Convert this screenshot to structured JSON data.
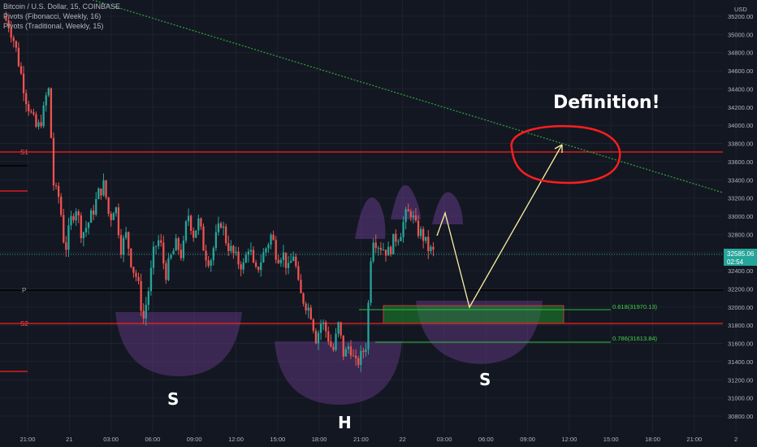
{
  "legend": {
    "title": "Bitcoin / U.S. Dollar, 15, COINBASE",
    "indicator1": "Pivots (Fibonacci, Weekly, 16)",
    "indicator2": "Pivots (Traditional, Weekly, 15)"
  },
  "price_axis": {
    "currency": "USD",
    "ticks": [
      "35200.00",
      "35000.00",
      "34800.00",
      "34600.00",
      "34400.00",
      "34200.00",
      "34000.00",
      "33800.00",
      "33600.00",
      "33400.00",
      "33200.00",
      "33000.00",
      "32800.00",
      "32600.00",
      "32400.00",
      "32200.00",
      "32000.00",
      "31800.00",
      "31600.00",
      "31400.00",
      "31200.00",
      "31000.00",
      "30800.00"
    ],
    "last_price": "32585.06",
    "countdown": "02:54"
  },
  "time_axis": {
    "ticks": [
      "21:00",
      "21",
      "03:00",
      "06:00",
      "09:00",
      "12:00",
      "15:00",
      "18:00",
      "21:00",
      "22",
      "03:00",
      "06:00",
      "09:00",
      "12:00",
      "15:00",
      "18:00",
      "21:00",
      "2"
    ]
  },
  "pivots": {
    "s1": "S1",
    "s2": "S2",
    "p": "P"
  },
  "fib": {
    "f618": "0.618(31970.13)",
    "f786": "0.786(31613.84)"
  },
  "annotations": {
    "definition": "Definition!",
    "left_shoulder": "S",
    "head": "H",
    "right_shoulder": "S"
  },
  "colors": {
    "up": "#26a69a",
    "down": "#ef5350",
    "pivot_red": "#ff1e1e",
    "trend": "#2e9e3a",
    "projection": "#f7f1a1",
    "shape": "#6a3e8f",
    "bg": "#131722"
  },
  "chart_data": {
    "type": "candlestick",
    "symbol": "BTCUSD",
    "timeframe": "15",
    "ylim": [
      30650,
      35300
    ],
    "levels": [
      {
        "name": "S1",
        "price": 33700
      },
      {
        "name": "P",
        "price": 32190
      },
      {
        "name": "S2",
        "price": 31830
      },
      {
        "name": "Fib 0.618",
        "price": 31970.13
      },
      {
        "name": "Fib 0.786",
        "price": 31613.84
      }
    ],
    "last_price": 32585.06,
    "trend_line": {
      "from_price": 35320,
      "to_price": 33250
    },
    "candles_close_path": [
      35200,
      35100,
      34900,
      34600,
      34300,
      34100,
      33950,
      34100,
      34450,
      33300,
      33200,
      32600,
      32950,
      33100,
      32800,
      32900,
      33050,
      33250,
      33350,
      32950,
      33150,
      32650,
      32800,
      32450,
      32300,
      31850,
      32200,
      32650,
      32750,
      32350,
      32550,
      32700,
      32550,
      33050,
      32800,
      32950,
      32600,
      32500,
      32750,
      32950,
      32700,
      32600,
      32500,
      32450,
      32700,
      32350,
      32500,
      32650,
      32800,
      32550,
      32600,
      32400,
      32600,
      32150,
      32050,
      31950,
      31650,
      31850,
      31700,
      31500,
      31800,
      31450,
      31600,
      31350,
      31450,
      31600,
      32800,
      32700,
      32650,
      32600,
      32750,
      32800,
      33000,
      33050,
      32850,
      32800,
      32650,
      32600
    ]
  }
}
